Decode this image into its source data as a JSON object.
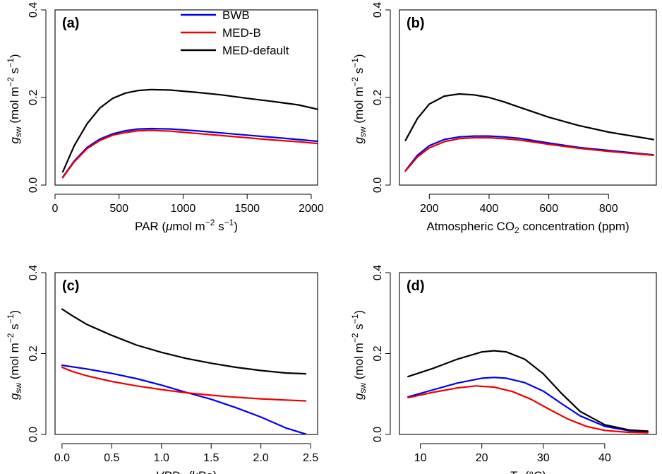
{
  "colors": {
    "BWB": "#0000ee",
    "MED-B": "#ee0000",
    "MED-default": "#000000"
  },
  "legend": {
    "placement": "top-center of panel (a)",
    "entries": [
      {
        "name": "BWB",
        "color": "#0000ee"
      },
      {
        "name": "MED-B",
        "color": "#ee0000"
      },
      {
        "name": "MED-default",
        "color": "#000000"
      }
    ]
  },
  "ylabel": {
    "g": "g",
    "sub": "sw",
    "text": " (mol m",
    "exp1": "−2",
    "mid": " s",
    "exp2": "−1",
    "end": ")"
  },
  "chart_data": [
    {
      "panel": "(a)",
      "type": "line",
      "xlabel": {
        "prefix": "PAR (",
        "mu": "μ",
        "rest": "mol m",
        "exp1": "−2",
        "mid": " s",
        "exp2": "−1",
        "end": ")"
      },
      "xlim": [
        0,
        2050
      ],
      "xticks": [
        0,
        500,
        1000,
        1500,
        2000
      ],
      "xtick_labels": [
        "0",
        "500",
        "1000",
        "1500",
        "2000"
      ],
      "ylim": [
        0,
        0.4
      ],
      "yticks": [
        0,
        0.2,
        0.4
      ],
      "ytick_labels": [
        "0.0",
        "0.2",
        "0.4"
      ],
      "series": [
        {
          "name": "BWB",
          "x": [
            60,
            150,
            250,
            350,
            450,
            550,
            650,
            750,
            900,
            1100,
            1300,
            1500,
            1700,
            1900,
            2050
          ],
          "values": [
            0.018,
            0.055,
            0.086,
            0.105,
            0.117,
            0.124,
            0.128,
            0.129,
            0.128,
            0.124,
            0.119,
            0.114,
            0.109,
            0.104,
            0.1
          ]
        },
        {
          "name": "MED-B",
          "x": [
            60,
            150,
            250,
            350,
            450,
            550,
            650,
            750,
            900,
            1100,
            1300,
            1500,
            1700,
            1900,
            2050
          ],
          "values": [
            0.017,
            0.053,
            0.083,
            0.102,
            0.114,
            0.12,
            0.124,
            0.125,
            0.123,
            0.118,
            0.113,
            0.108,
            0.103,
            0.099,
            0.095
          ]
        },
        {
          "name": "MED-default",
          "x": [
            60,
            150,
            250,
            350,
            450,
            550,
            650,
            750,
            900,
            1100,
            1300,
            1500,
            1700,
            1900,
            2050
          ],
          "values": [
            0.03,
            0.09,
            0.14,
            0.176,
            0.198,
            0.21,
            0.216,
            0.218,
            0.217,
            0.212,
            0.206,
            0.198,
            0.191,
            0.183,
            0.173
          ]
        }
      ]
    },
    {
      "panel": "(b)",
      "type": "line",
      "xlabel": {
        "prefix": "Atmospheric CO",
        "sub": "2",
        "rest": " concentration (ppm)"
      },
      "xlim": [
        100,
        960
      ],
      "xticks": [
        200,
        400,
        600,
        800
      ],
      "xtick_labels": [
        "200",
        "400",
        "600",
        "800"
      ],
      "ylim": [
        0,
        0.4
      ],
      "yticks": [
        0,
        0.2,
        0.4
      ],
      "ytick_labels": [
        "0.0",
        "0.2",
        "0.4"
      ],
      "series": [
        {
          "name": "BWB",
          "x": [
            120,
            160,
            200,
            250,
            300,
            350,
            400,
            450,
            500,
            600,
            700,
            800,
            950
          ],
          "values": [
            0.033,
            0.068,
            0.09,
            0.104,
            0.11,
            0.112,
            0.112,
            0.11,
            0.107,
            0.096,
            0.086,
            0.079,
            0.069
          ]
        },
        {
          "name": "MED-B",
          "x": [
            120,
            160,
            200,
            250,
            300,
            350,
            400,
            450,
            500,
            600,
            700,
            800,
            950
          ],
          "values": [
            0.032,
            0.064,
            0.085,
            0.099,
            0.106,
            0.108,
            0.108,
            0.106,
            0.103,
            0.093,
            0.084,
            0.077,
            0.068
          ]
        },
        {
          "name": "MED-default",
          "x": [
            120,
            160,
            200,
            250,
            300,
            350,
            400,
            450,
            500,
            600,
            700,
            800,
            950
          ],
          "values": [
            0.102,
            0.152,
            0.185,
            0.203,
            0.208,
            0.206,
            0.2,
            0.19,
            0.178,
            0.155,
            0.136,
            0.121,
            0.104
          ]
        }
      ]
    },
    {
      "panel": "(c)",
      "type": "line",
      "xlabel": {
        "italic": "VPD",
        "sub": "a",
        "rest": " (kPa)"
      },
      "xlim": [
        -0.07,
        2.57
      ],
      "xticks": [
        0,
        0.5,
        1.0,
        1.5,
        2.0,
        2.5
      ],
      "xtick_labels": [
        "0.0",
        "0.5",
        "1.0",
        "1.5",
        "2.0",
        "2.5"
      ],
      "ylim": [
        0,
        0.4
      ],
      "yticks": [
        0,
        0.2,
        0.4
      ],
      "ytick_labels": [
        "0.0",
        "0.2",
        "0.4"
      ],
      "series": [
        {
          "name": "BWB",
          "x": [
            0,
            0.25,
            0.5,
            0.75,
            1.0,
            1.25,
            1.5,
            1.75,
            2.0,
            2.25,
            2.45
          ],
          "values": [
            0.171,
            0.162,
            0.151,
            0.138,
            0.122,
            0.104,
            0.087,
            0.066,
            0.043,
            0.016,
            0.001
          ]
        },
        {
          "name": "MED-B",
          "x": [
            0,
            0.1,
            0.25,
            0.5,
            0.75,
            1.0,
            1.25,
            1.5,
            1.75,
            2.0,
            2.25,
            2.45
          ],
          "values": [
            0.166,
            0.156,
            0.145,
            0.131,
            0.12,
            0.111,
            0.103,
            0.097,
            0.092,
            0.088,
            0.085,
            0.083
          ]
        },
        {
          "name": "MED-default",
          "x": [
            0,
            0.1,
            0.25,
            0.5,
            0.75,
            1.0,
            1.25,
            1.5,
            1.75,
            2.0,
            2.25,
            2.45
          ],
          "values": [
            0.31,
            0.294,
            0.272,
            0.245,
            0.221,
            0.203,
            0.188,
            0.176,
            0.166,
            0.158,
            0.152,
            0.15
          ]
        }
      ]
    },
    {
      "panel": "(d)",
      "type": "line",
      "xlabel": {
        "italic": "T",
        "sub": "a",
        "rest": " (°C)"
      },
      "xlim": [
        6.6,
        48.4
      ],
      "xticks": [
        10,
        20,
        30,
        40
      ],
      "xtick_labels": [
        "10",
        "20",
        "30",
        "40"
      ],
      "ylim": [
        0,
        0.4
      ],
      "yticks": [
        0,
        0.2,
        0.4
      ],
      "ytick_labels": [
        "0.0",
        "0.2",
        "0.4"
      ],
      "series": [
        {
          "name": "BWB",
          "x": [
            8,
            12,
            16,
            20,
            22,
            24,
            27,
            30,
            33,
            36,
            40,
            44,
            47
          ],
          "values": [
            0.093,
            0.11,
            0.127,
            0.139,
            0.141,
            0.139,
            0.128,
            0.107,
            0.076,
            0.046,
            0.02,
            0.009,
            0.006
          ]
        },
        {
          "name": "MED-B",
          "x": [
            8,
            12,
            16,
            19,
            22,
            25,
            28,
            31,
            34,
            37,
            40,
            44,
            47
          ],
          "values": [
            0.091,
            0.104,
            0.115,
            0.12,
            0.117,
            0.106,
            0.087,
            0.062,
            0.038,
            0.02,
            0.01,
            0.005,
            0.004
          ]
        },
        {
          "name": "MED-default",
          "x": [
            8,
            12,
            16,
            20,
            22,
            24,
            27,
            30,
            33,
            36,
            40,
            44,
            47
          ],
          "values": [
            0.143,
            0.163,
            0.186,
            0.204,
            0.207,
            0.204,
            0.186,
            0.15,
            0.101,
            0.057,
            0.024,
            0.011,
            0.008
          ]
        }
      ]
    }
  ]
}
